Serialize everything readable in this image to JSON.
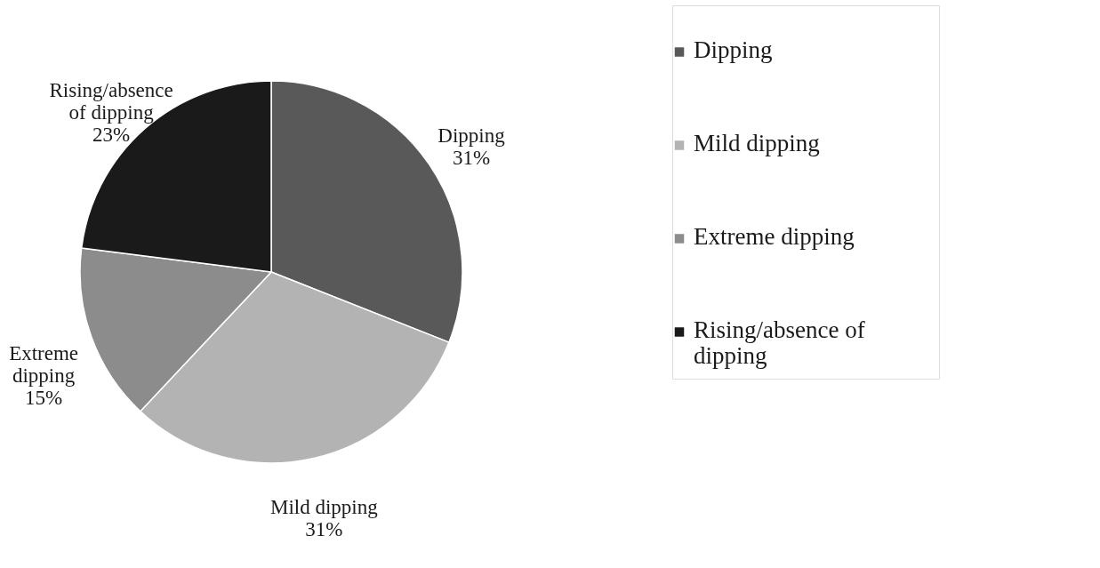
{
  "chart_data": {
    "type": "pie",
    "categories": [
      "Dipping",
      "Mild dipping",
      "Extreme dipping",
      "Rising/absence of dipping"
    ],
    "values": [
      31,
      31,
      15,
      23
    ],
    "value_labels": [
      "31%",
      "31%",
      "15%",
      "23%"
    ],
    "colors": [
      "#595959",
      "#b3b3b3",
      "#8c8c8c",
      "#1a1a1a"
    ],
    "legend": "right"
  }
}
